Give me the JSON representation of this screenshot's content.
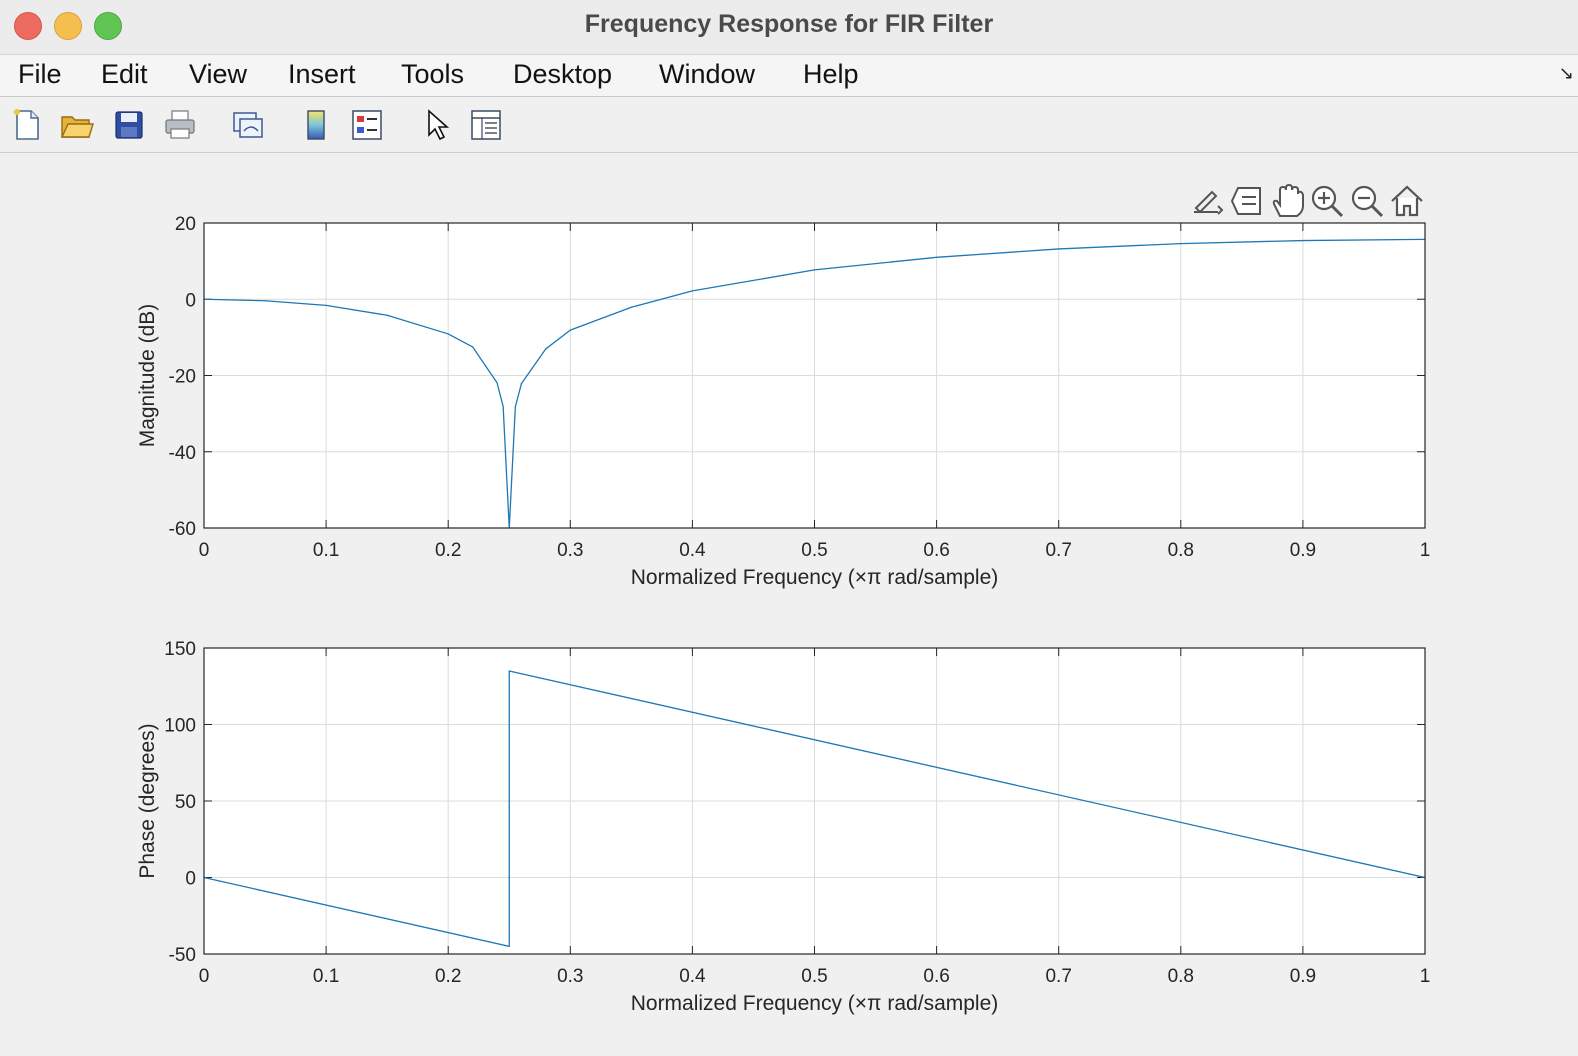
{
  "window": {
    "title": "Frequency Response for FIR Filter"
  },
  "menu": [
    "File",
    "Edit",
    "View",
    "Insert",
    "Tools",
    "Desktop",
    "Window",
    "Help"
  ],
  "toolbar": [
    {
      "name": "new-figure-icon"
    },
    {
      "name": "open-file-icon"
    },
    {
      "name": "save-icon"
    },
    {
      "name": "print-icon"
    },
    {
      "name": "link-plot-icon"
    },
    {
      "name": "colorbar-icon"
    },
    {
      "name": "legend-icon"
    },
    {
      "name": "pointer-icon"
    },
    {
      "name": "property-inspector-icon"
    }
  ],
  "axes_toolbar": [
    {
      "name": "export-icon"
    },
    {
      "name": "data-tips-icon"
    },
    {
      "name": "pan-icon"
    },
    {
      "name": "zoom-in-icon"
    },
    {
      "name": "zoom-out-icon"
    },
    {
      "name": "home-icon"
    }
  ],
  "colors": {
    "line": "#1f77b4",
    "axes_bg": "#ffffff",
    "grid": "#dcdcdc",
    "figure_bg": "#f0f0f0"
  },
  "chart_data": [
    {
      "type": "line",
      "xlabel": "Normalized Frequency  (×π rad/sample)",
      "ylabel": "Magnitude (dB)",
      "xlim": [
        0,
        1
      ],
      "ylim": [
        -60,
        20
      ],
      "xticks": [
        "0",
        "0.1",
        "0.2",
        "0.3",
        "0.4",
        "0.5",
        "0.6",
        "0.7",
        "0.8",
        "0.9",
        "1"
      ],
      "yticks": [
        "-60",
        "-40",
        "-20",
        "0",
        "20"
      ],
      "grid": true,
      "series": [
        {
          "x": [
            0,
            0.05,
            0.1,
            0.15,
            0.2,
            0.22,
            0.24,
            0.245,
            0.25,
            0.255,
            0.26,
            0.28,
            0.3,
            0.35,
            0.4,
            0.5,
            0.6,
            0.7,
            0.8,
            0.9,
            1.0
          ],
          "y": [
            0,
            -0.4,
            -1.6,
            -4.2,
            -9.1,
            -12.5,
            -21.9,
            -28.1,
            -60,
            -28.2,
            -22.1,
            -13.0,
            -8.1,
            -2.1,
            2.2,
            7.7,
            11.0,
            13.2,
            14.6,
            15.4,
            15.7
          ]
        }
      ]
    },
    {
      "type": "line",
      "xlabel": "Normalized Frequency  (×π rad/sample)",
      "ylabel": "Phase (degrees)",
      "xlim": [
        0,
        1
      ],
      "ylim": [
        -50,
        150
      ],
      "xticks": [
        "0",
        "0.1",
        "0.2",
        "0.3",
        "0.4",
        "0.5",
        "0.6",
        "0.7",
        "0.8",
        "0.9",
        "1"
      ],
      "yticks": [
        "-50",
        "0",
        "50",
        "100",
        "150"
      ],
      "grid": true,
      "series": [
        {
          "x": [
            0,
            0.25,
            0.25,
            1.0
          ],
          "y": [
            0,
            -45,
            135,
            0
          ]
        }
      ]
    }
  ]
}
